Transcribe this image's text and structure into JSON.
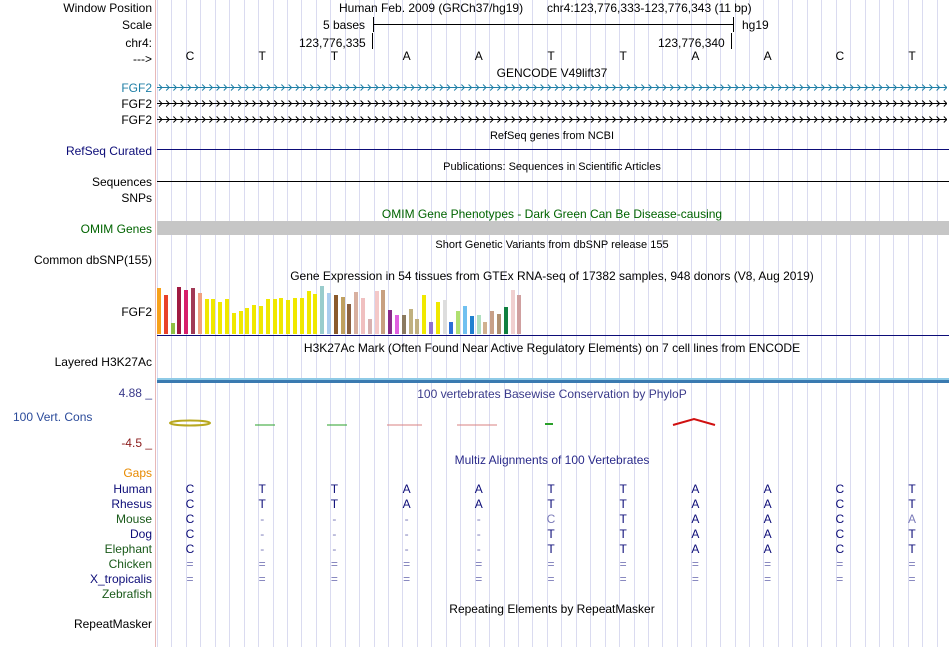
{
  "header": {
    "window_position_label": "Window Position",
    "scale_label": "Scale",
    "chrom_label": "chr4:",
    "strand_label": "--->",
    "assembly": "Human Feb. 2009 (GRCh37/hg19)",
    "position": "chr4:123,776,333-123,776,343 (11 bp)",
    "scale_text": "5 bases",
    "db": "hg19",
    "coord_left": "123,776,335",
    "coord_right": "123,776,340"
  },
  "sequence": [
    "C",
    "T",
    "T",
    "A",
    "A",
    "T",
    "T",
    "A",
    "A",
    "C",
    "T"
  ],
  "tracks": {
    "gencode": {
      "title": "GENCODE V49lift37",
      "labels": [
        "FGF2",
        "FGF2",
        "FGF2"
      ],
      "color_first": "#1f7fa6",
      "color_rest": "#000000"
    },
    "refseq": {
      "title": "RefSeq genes from NCBI",
      "label": "RefSeq Curated",
      "color": "#0c0c78"
    },
    "publications": {
      "title": "Publications: Sequences in Scientific Articles",
      "label1": "Sequences",
      "label2": "SNPs"
    },
    "omim": {
      "title": "OMIM Gene Phenotypes - Dark Green Can Be Disease-causing",
      "label": "OMIM Genes",
      "color": "#006400"
    },
    "dbsnp": {
      "title": "Short Genetic Variants from dbSNP release 155",
      "label": "Common dbSNP(155)"
    },
    "gtex": {
      "title": "Gene Expression in 54 tissues from GTEx RNA-seq of 17382 samples, 948 donors (V8, Aug 2019)",
      "label": "FGF2",
      "values": [
        0.95,
        0.82,
        0.22,
        0.98,
        0.92,
        0.95,
        0.86,
        0.72,
        0.72,
        0.66,
        0.72,
        0.44,
        0.48,
        0.55,
        0.6,
        0.58,
        0.72,
        0.72,
        0.75,
        0.7,
        0.74,
        0.74,
        0.9,
        0.84,
        1.0,
        0.86,
        0.82,
        0.78,
        0.62,
        0.88,
        0.74,
        0.32,
        0.9,
        0.92,
        0.5,
        0.4,
        0.4,
        0.52,
        0.32,
        0.82,
        0.24,
        0.66,
        0.7,
        0.26,
        0.48,
        0.58,
        0.38,
        0.4,
        0.26,
        0.48,
        0.42,
        0.56,
        0.92,
        0.82
      ],
      "colors": [
        "#f7a11a",
        "#e8412a",
        "#8fbf42",
        "#a01a42",
        "#d71f6b",
        "#a13a56",
        "#f0a080",
        "#f0e800",
        "#f0e800",
        "#f0e800",
        "#f0e800",
        "#f0e800",
        "#f0e800",
        "#f0e800",
        "#f0e800",
        "#f0e800",
        "#f0e800",
        "#f0e800",
        "#f0e800",
        "#f0e800",
        "#f0e800",
        "#f0e800",
        "#f0e800",
        "#f0e800",
        "#99cccc",
        "#aaccee",
        "#8b5a2b",
        "#c0a060",
        "#8b6040",
        "#d8b0a0",
        "#f0c0c0",
        "#d8b0b0",
        "#f4c8c8",
        "#c8a080",
        "#8b2a8b",
        "#e060e0",
        "#8b7a60",
        "#c0b080",
        "#c0b080",
        "#f0e800",
        "#9070d0",
        "#f0e800",
        "#dddddd",
        "#2a6ed8",
        "#b0e070",
        "#70c0f0",
        "#2080d0",
        "#b0e0c0",
        "#d0b090",
        "#c8a088",
        "#b09070",
        "#108040",
        "#f0d0d0",
        "#d0a0a0"
      ]
    },
    "h3k27ac": {
      "title": "H3K27Ac Mark (Often Found Near Active Regulatory Elements) on 7 cell lines from ENCODE",
      "label": "Layered H3K27Ac"
    },
    "phylop": {
      "title": "100 vertebrates Basewise Conservation by PhyloP",
      "label": "100 Vert. Cons",
      "max": "4.88 _",
      "min": "-4.5 _",
      "label_color": "#2a4a9a",
      "max_color": "#3a3a8a",
      "min_color": "#8a1a1a"
    },
    "multiz": {
      "title": "Multiz Alignments of 100 Vertebrates",
      "gaps_label": "Gaps",
      "gaps_color": "#e88a00",
      "species": [
        {
          "name": "Human",
          "color": "#0c0c78",
          "bases": [
            "C",
            "T",
            "T",
            "A",
            "A",
            "T",
            "T",
            "A",
            "A",
            "C",
            "T"
          ]
        },
        {
          "name": "Rhesus",
          "color": "#0c0c78",
          "bases": [
            "C",
            "T",
            "T",
            "A",
            "A",
            "T",
            "T",
            "A",
            "A",
            "C",
            "T"
          ]
        },
        {
          "name": "Mouse",
          "color": "#1a5a1a",
          "bases": [
            "C",
            "-",
            "-",
            "-",
            "-",
            "C",
            "T",
            "A",
            "A",
            "C",
            "A"
          ]
        },
        {
          "name": "Dog",
          "color": "#0c0c78",
          "bases": [
            "C",
            "-",
            "-",
            "-",
            "-",
            "T",
            "T",
            "A",
            "A",
            "C",
            "T"
          ]
        },
        {
          "name": "Elephant",
          "color": "#1a5a1a",
          "bases": [
            "C",
            "-",
            "-",
            "-",
            "-",
            "T",
            "T",
            "A",
            "A",
            "C",
            "T"
          ]
        },
        {
          "name": "Chicken",
          "color": "#1a5a1a",
          "bases": [
            "=",
            "=",
            "=",
            "=",
            "=",
            "=",
            "=",
            "=",
            "=",
            "=",
            "="
          ]
        },
        {
          "name": "X_tropicalis",
          "color": "#0c0c78",
          "bases": [
            "=",
            "=",
            "=",
            "=",
            "=",
            "=",
            "=",
            "=",
            "=",
            "=",
            "="
          ]
        },
        {
          "name": "Zebrafish",
          "color": "#1a5a1a",
          "bases": []
        }
      ]
    },
    "repeatmasker": {
      "title": "Repeating Elements by RepeatMasker",
      "label": "RepeatMasker"
    }
  }
}
